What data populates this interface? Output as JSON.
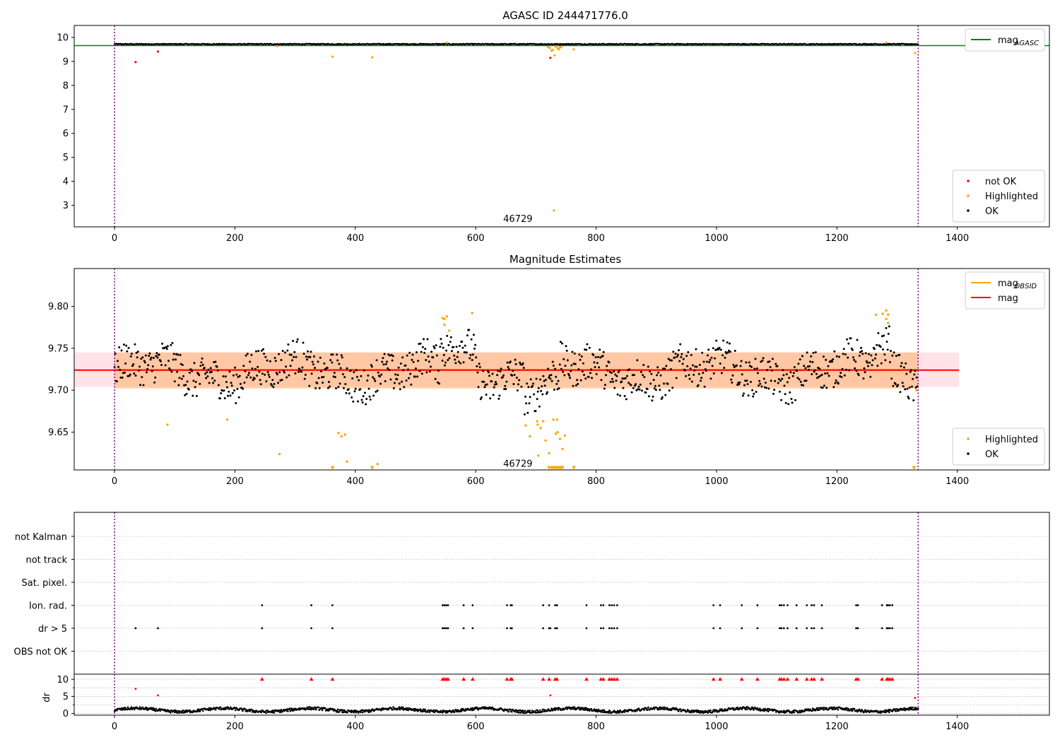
{
  "chart_data": [
    {
      "type": "scatter",
      "title": "AGASC ID 244471776.0",
      "xlim": [
        -67,
        1553
      ],
      "ylim": [
        2.1,
        10.5
      ],
      "xticks": [
        0,
        200,
        400,
        600,
        800,
        1000,
        1200,
        1400
      ],
      "yticks": [
        3,
        4,
        5,
        6,
        7,
        8,
        9,
        10
      ],
      "vlines": [
        0,
        1335
      ],
      "annotations": [
        {
          "text": "46729",
          "x": 670,
          "y": 2.45
        }
      ],
      "legend_upper": {
        "placement": "upper-right",
        "entries": [
          {
            "label": "mag",
            "sub": "AGASC",
            "color": "#008000"
          }
        ]
      },
      "legend_lower": {
        "placement": "lower-right",
        "entries": [
          {
            "label": "not OK",
            "color": "#ff0000"
          },
          {
            "label": "Highlighted",
            "color": "#ffa500"
          },
          {
            "label": "OK",
            "color": "#000000"
          }
        ]
      },
      "series": [
        {
          "name": "mag",
          "sub": "AGASC",
          "kind": "hline",
          "y": 9.66,
          "color": "#008000"
        },
        {
          "name": "OK",
          "kind": "dense_band",
          "x_range": [
            0,
            1335
          ],
          "y_center": 9.72,
          "y_spread": 0.04,
          "color": "#000000"
        },
        {
          "name": "Highlighted",
          "color": "#ffa500",
          "points": [
            [
              362,
              9.2
            ],
            [
              428,
              9.17
            ],
            [
              720,
              9.6
            ],
            [
              723,
              9.56
            ],
            [
              726,
              9.45
            ],
            [
              728,
              9.48
            ],
            [
              731,
              9.25
            ],
            [
              733,
              9.62
            ],
            [
              736,
              9.55
            ],
            [
              738,
              9.5
            ],
            [
              740,
              9.58
            ],
            [
              742,
              9.6
            ],
            [
              763,
              9.5
            ],
            [
              1330,
              9.35
            ],
            [
              730,
              2.78
            ],
            [
              270,
              9.63
            ],
            [
              552,
              9.78
            ],
            [
              1282,
              9.78
            ]
          ]
        },
        {
          "name": "not OK",
          "color": "#ff0000",
          "points": [
            [
              35,
              8.97
            ],
            [
              72,
              9.41
            ],
            [
              724,
              9.15
            ]
          ]
        }
      ]
    },
    {
      "type": "scatter",
      "title": "Magnitude Estimates",
      "xlim": [
        -67,
        1553
      ],
      "ylim": [
        9.605,
        9.845
      ],
      "xticks": [
        0,
        200,
        400,
        600,
        800,
        1000,
        1200,
        1400
      ],
      "yticks": [
        9.65,
        9.7,
        9.75,
        9.8
      ],
      "ytick_labels": [
        "9.65",
        "9.70",
        "9.75",
        "9.80"
      ],
      "vlines": [
        0,
        1335
      ],
      "annotations": [
        {
          "text": "46729",
          "x": 670,
          "y": 9.613
        }
      ],
      "bands": [
        {
          "x_range": [
            -67,
            1403
          ],
          "y_range": [
            9.704,
            9.745
          ],
          "color": "#ffc0cb"
        },
        {
          "x_range": [
            0,
            1335
          ],
          "y_range": [
            9.702,
            9.745
          ],
          "color": "#ffa54f"
        }
      ],
      "legend_upper": {
        "placement": "upper-right",
        "entries": [
          {
            "label": "mag",
            "sub": "OBSID",
            "color": "#ffa500"
          },
          {
            "label": "mag",
            "color": "#ff0000"
          }
        ]
      },
      "legend_lower": {
        "placement": "lower-right",
        "entries": [
          {
            "label": "Highlighted",
            "color": "#ffa500"
          },
          {
            "label": "OK",
            "color": "#000000"
          }
        ]
      },
      "series": [
        {
          "name": "mag",
          "sub": "OBSID",
          "kind": "segment",
          "x_range": [
            0,
            1335
          ],
          "y": 9.7245,
          "color": "#ffa500"
        },
        {
          "name": "mag",
          "kind": "segment",
          "x_range": [
            -67,
            1403
          ],
          "y": 9.724,
          "color": "#ff0000"
        },
        {
          "name": "OK",
          "kind": "scatter_band",
          "x_range": [
            0,
            1335
          ],
          "y_center": 9.722,
          "y_spread": 0.022,
          "color": "#000000"
        },
        {
          "name": "Highlighted",
          "color": "#ffa500",
          "points": [
            [
              88,
              9.659
            ],
            [
              187,
              9.665
            ],
            [
              274,
              9.624
            ],
            [
              372,
              9.649
            ],
            [
              377,
              9.645
            ],
            [
              383,
              9.647
            ],
            [
              386,
              9.615
            ],
            [
              437,
              9.612
            ],
            [
              545,
              9.786
            ],
            [
              548,
              9.785
            ],
            [
              552,
              9.788
            ],
            [
              548,
              9.778
            ],
            [
              556,
              9.771
            ],
            [
              594,
              9.792
            ],
            [
              683,
              9.658
            ],
            [
              690,
              9.645
            ],
            [
              702,
              9.663
            ],
            [
              703,
              9.659
            ],
            [
              708,
              9.655
            ],
            [
              712,
              9.663
            ],
            [
              716,
              9.64
            ],
            [
              704,
              9.622
            ],
            [
              722,
              9.625
            ],
            [
              729,
              9.665
            ],
            [
              733,
              9.648
            ],
            [
              735,
              9.665
            ],
            [
              736,
              9.65
            ],
            [
              740,
              9.642
            ],
            [
              744,
              9.63
            ],
            [
              748,
              9.646
            ],
            [
              1265,
              9.79
            ],
            [
              1276,
              9.791
            ],
            [
              1282,
              9.795
            ],
            [
              1282,
              9.785
            ],
            [
              1285,
              9.79
            ],
            [
              1285,
              9.78
            ],
            [
              1332,
              9.7
            ]
          ]
        },
        {
          "name": "Highlighted",
          "marker": "triangle_down",
          "color": "#ffa500",
          "points": [
            [
              362,
              9.607
            ],
            [
              428,
              9.607
            ],
            [
              722,
              9.607
            ],
            [
              726,
              9.607
            ],
            [
              729,
              9.607
            ],
            [
              732,
              9.607
            ],
            [
              735,
              9.607
            ],
            [
              738,
              9.607
            ],
            [
              741,
              9.607
            ],
            [
              744,
              9.607
            ],
            [
              763,
              9.607
            ],
            [
              1328,
              9.607
            ]
          ]
        }
      ]
    },
    {
      "type": "scatter",
      "title": "",
      "xlim": [
        -67,
        1553
      ],
      "categories": [
        "not Kalman",
        "not track",
        "Sat. pixel.",
        "Ion. rad.",
        "dr > 5",
        "OBS not OK"
      ],
      "vlines": [
        0,
        1335
      ],
      "flag_x": {
        "Ion. rad.": [
          245,
          327,
          362,
          545,
          548,
          551,
          554,
          580,
          595,
          652,
          658,
          660,
          712,
          722,
          732,
          735,
          784,
          808,
          812,
          822,
          826,
          830,
          835,
          995,
          1006,
          1042,
          1068,
          1105,
          1108,
          1112,
          1118,
          1133,
          1150,
          1158,
          1162,
          1175,
          1232,
          1235,
          1275,
          1283,
          1285,
          1288,
          1292
        ],
        "dr > 5": [
          35,
          72,
          245,
          327,
          362,
          545,
          548,
          551,
          554,
          580,
          595,
          652,
          658,
          660,
          712,
          722,
          724,
          732,
          735,
          784,
          808,
          812,
          822,
          826,
          830,
          835,
          995,
          1006,
          1042,
          1068,
          1105,
          1108,
          1112,
          1118,
          1133,
          1150,
          1158,
          1162,
          1175,
          1232,
          1235,
          1275,
          1283,
          1285,
          1288,
          1292
        ]
      }
    },
    {
      "type": "scatter",
      "title": "",
      "ylabel": "dr",
      "xlim": [
        -67,
        1553
      ],
      "ylim": [
        -0.5,
        11.5
      ],
      "xticks": [
        0,
        200,
        400,
        600,
        800,
        1000,
        1200,
        1400
      ],
      "yticks": [
        0,
        5,
        10
      ],
      "vlines": [
        0,
        1335
      ],
      "hline": 10,
      "series": [
        {
          "name": "OK",
          "kind": "dense_band",
          "x_range": [
            0,
            1335
          ],
          "y_center": 1.0,
          "y_spread": 0.8,
          "color": "#000000"
        },
        {
          "name": "not OK",
          "color": "#ff0000",
          "points": [
            [
              35,
              7.2
            ],
            [
              72,
              5.3
            ],
            [
              724,
              5.3
            ],
            [
              1330,
              4.5
            ]
          ]
        },
        {
          "name": "not OK",
          "marker": "triangle_up",
          "color": "#ff0000",
          "points": [
            [
              245,
              10
            ],
            [
              327,
              10
            ],
            [
              362,
              10
            ],
            [
              545,
              10
            ],
            [
              548,
              10
            ],
            [
              551,
              10
            ],
            [
              554,
              10
            ],
            [
              580,
              10
            ],
            [
              595,
              10
            ],
            [
              652,
              10
            ],
            [
              658,
              10
            ],
            [
              660,
              10
            ],
            [
              712,
              10
            ],
            [
              722,
              10
            ],
            [
              732,
              10
            ],
            [
              735,
              10
            ],
            [
              784,
              10
            ],
            [
              808,
              10
            ],
            [
              812,
              10
            ],
            [
              822,
              10
            ],
            [
              826,
              10
            ],
            [
              830,
              10
            ],
            [
              835,
              10
            ],
            [
              995,
              10
            ],
            [
              1006,
              10
            ],
            [
              1042,
              10
            ],
            [
              1068,
              10
            ],
            [
              1105,
              10
            ],
            [
              1108,
              10
            ],
            [
              1112,
              10
            ],
            [
              1118,
              10
            ],
            [
              1133,
              10
            ],
            [
              1150,
              10
            ],
            [
              1158,
              10
            ],
            [
              1162,
              10
            ],
            [
              1175,
              10
            ],
            [
              1232,
              10
            ],
            [
              1235,
              10
            ],
            [
              1275,
              10
            ],
            [
              1283,
              10
            ],
            [
              1285,
              10
            ],
            [
              1288,
              10
            ],
            [
              1292,
              10
            ]
          ]
        }
      ]
    }
  ]
}
